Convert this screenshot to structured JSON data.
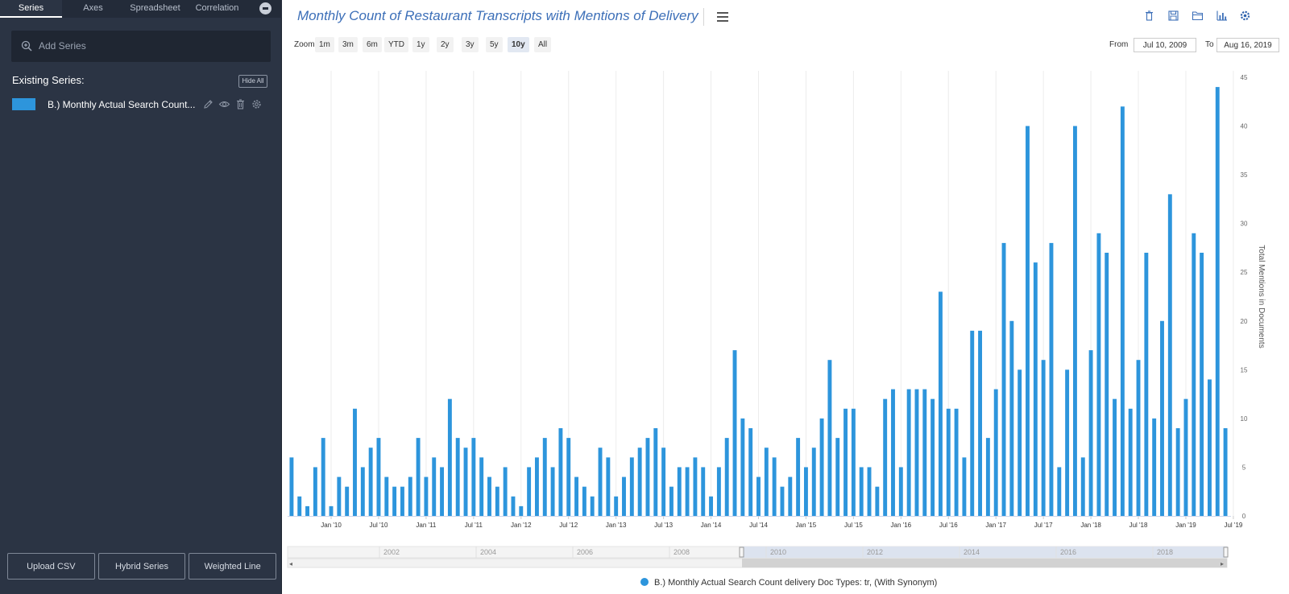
{
  "sidebar": {
    "tabs": [
      {
        "label": "Series",
        "active": true
      },
      {
        "label": "Axes",
        "active": false
      },
      {
        "label": "Spreadsheet",
        "active": false
      },
      {
        "label": "Correlation",
        "active": false
      }
    ],
    "add_series_label": "Add Series",
    "existing_title": "Existing Series:",
    "hide_all_label": "Hide All",
    "series": [
      {
        "name": "B.) Monthly Actual Search Count...",
        "color": "#2d95dc"
      }
    ],
    "bottom_buttons": [
      "Upload CSV",
      "Hybrid Series",
      "Weighted Line"
    ]
  },
  "header": {
    "title": "Monthly Count of Restaurant Transcripts with Mentions of Delivery",
    "tools": [
      "trash-icon",
      "save-icon",
      "folder-icon",
      "bar-chart-icon",
      "gear-icon"
    ]
  },
  "zoom": {
    "label": "Zoom",
    "options": [
      "1m",
      "3m",
      "6m",
      "YTD",
      "1y",
      "2y",
      "3y",
      "5y",
      "10y",
      "All"
    ],
    "selected": "10y"
  },
  "range": {
    "from_label": "From",
    "from_value": "Jul 10, 2009",
    "to_label": "To",
    "to_value": "Aug 16, 2019"
  },
  "colors": {
    "accent": "#2d95dc",
    "title": "#3c6fb8",
    "sidebar_bg": "#2b3444"
  },
  "chart_data": {
    "type": "bar",
    "title": "Monthly Count of Restaurant Transcripts with Mentions of Delivery",
    "ylabel": "Total Mentions in Documents",
    "ylim": [
      0,
      45
    ],
    "yticks": [
      0,
      5,
      10,
      15,
      20,
      25,
      30,
      35,
      40,
      45
    ],
    "x_start": "2009-08",
    "x_tick_labels": [
      "Jan '10",
      "Jul '10",
      "Jan '11",
      "Jul '11",
      "Jan '12",
      "Jul '12",
      "Jan '13",
      "Jul '13",
      "Jan '14",
      "Jul '14",
      "Jan '15",
      "Jul '15",
      "Jan '16",
      "Jul '16",
      "Jan '17",
      "Jul '17",
      "Jan '18",
      "Jul '18",
      "Jan '19",
      "Jul '19"
    ],
    "grid": true,
    "legend_position": "bottom-center",
    "series": [
      {
        "name": "B.) Monthly Actual Search Count delivery Doc Types: tr, (With Synonym)",
        "color": "#2d95dc",
        "values": [
          6,
          2,
          1,
          5,
          8,
          1,
          4,
          3,
          11,
          5,
          7,
          8,
          4,
          3,
          3,
          4,
          8,
          4,
          6,
          5,
          12,
          8,
          7,
          8,
          6,
          4,
          3,
          5,
          2,
          1,
          5,
          6,
          8,
          5,
          9,
          8,
          4,
          3,
          2,
          7,
          6,
          2,
          4,
          6,
          7,
          8,
          9,
          7,
          3,
          5,
          5,
          6,
          5,
          2,
          5,
          8,
          17,
          10,
          9,
          4,
          7,
          6,
          3,
          4,
          8,
          5,
          7,
          10,
          16,
          8,
          11,
          11,
          5,
          5,
          3,
          12,
          13,
          5,
          13,
          13,
          13,
          12,
          23,
          11,
          11,
          6,
          19,
          19,
          8,
          13,
          28,
          20,
          15,
          40,
          26,
          16,
          28,
          5,
          15,
          40,
          6,
          17,
          29,
          27,
          12,
          42,
          11,
          16,
          27,
          10,
          20,
          33,
          9,
          12,
          29,
          27,
          14,
          44,
          9
        ]
      }
    ]
  },
  "navigator": {
    "years": [
      "2002",
      "2004",
      "2006",
      "2008",
      "2010",
      "2012",
      "2014",
      "2016",
      "2018"
    ]
  },
  "legend": {
    "label": "B.) Monthly Actual Search Count delivery Doc Types: tr, (With Synonym)"
  }
}
